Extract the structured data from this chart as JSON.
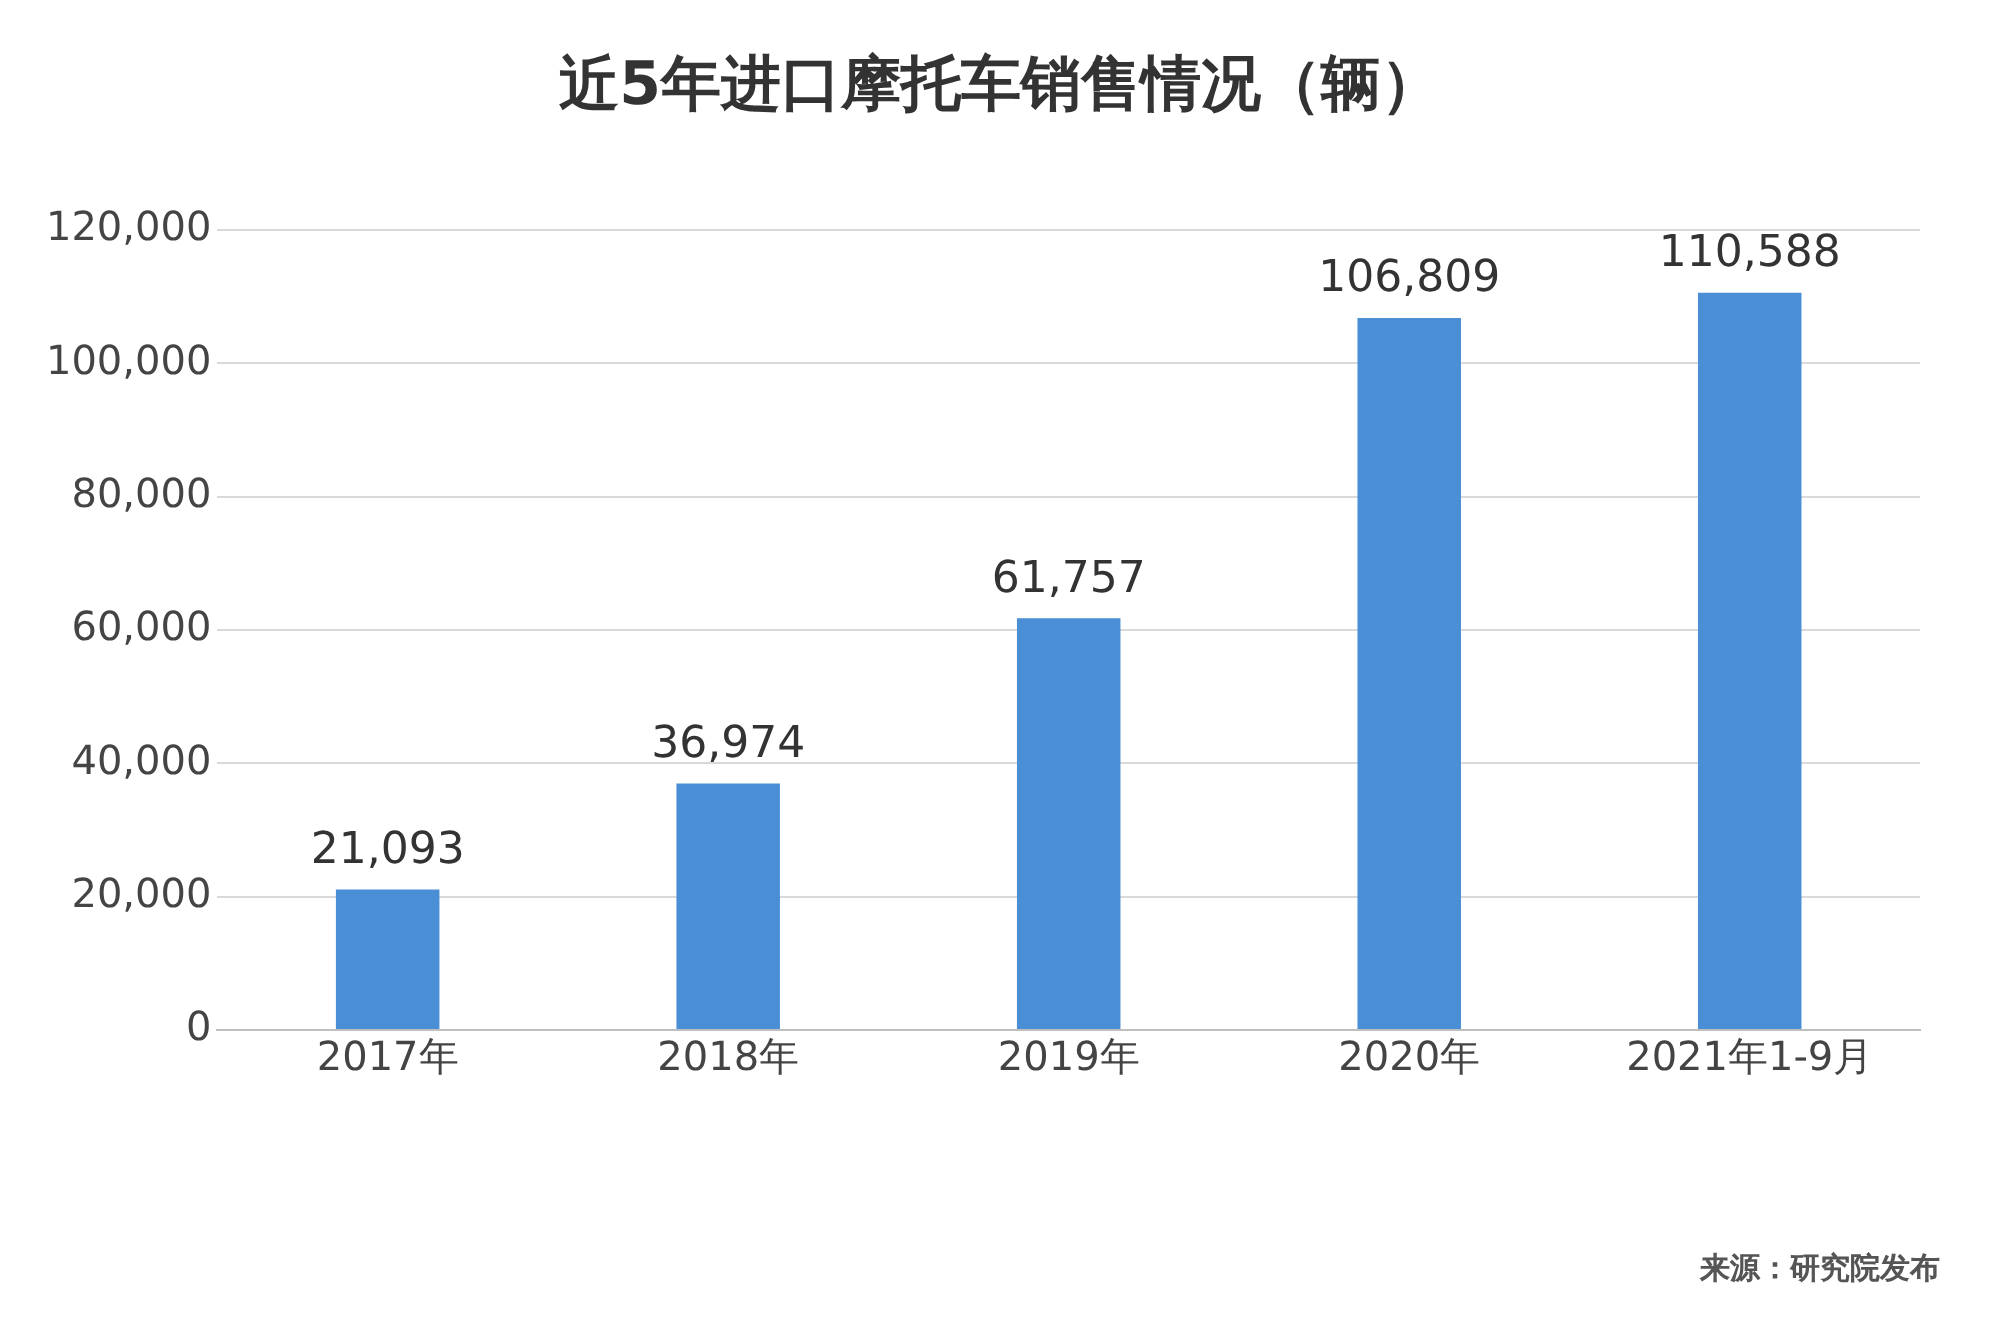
{
  "chart_data": {
    "type": "bar",
    "title": "近5年进口摩托车销售情况（辆）",
    "categories": [
      "2017年",
      "2018年",
      "2019年",
      "2020年",
      "2021年1-9月"
    ],
    "values": [
      21093,
      36974,
      61757,
      106809,
      110588
    ],
    "color": "#4a8fd6",
    "ylim": [
      0,
      120000
    ],
    "yticks": [
      {
        "value": 0,
        "label": "0"
      },
      {
        "value": 20000,
        "label": "20,000"
      },
      {
        "value": 40000,
        "label": "40,000"
      },
      {
        "value": 60000,
        "label": "60,000"
      },
      {
        "value": 80000,
        "label": "80,000"
      },
      {
        "value": 100000,
        "label": "100,000"
      },
      {
        "value": 120000,
        "label": "120,000"
      }
    ],
    "value_labels": [
      "21,093",
      "36,974",
      "61,757",
      "106,809",
      "110,588"
    ],
    "grid": "y",
    "annotations": [
      "来源：研究院发布"
    ]
  }
}
